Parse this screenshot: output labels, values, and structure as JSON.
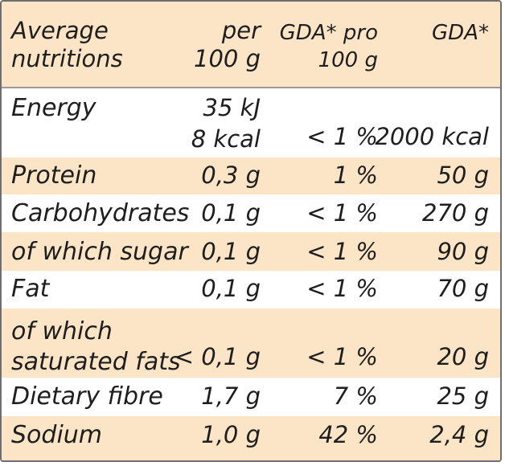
{
  "header": {
    "name_line1": "Average",
    "name_line2": "nutritions",
    "per_line1": "per",
    "per_line2": "100 g",
    "gda_pro_line1": "GDA* pro",
    "gda_pro_line2": "100 g",
    "gda": "GDA*"
  },
  "rows": [
    {
      "name": "Energy",
      "per_line1": "35 kJ",
      "per_line2": "8 kcal",
      "pct": "< 1 %",
      "gda": "2000 kcal"
    },
    {
      "name": "Protein",
      "per": "0,3 g",
      "pct": "1 %",
      "gda": "50 g"
    },
    {
      "name": "Carbohydrates",
      "per": "0,1 g",
      "pct": "< 1 %",
      "gda": "270 g"
    },
    {
      "name": "of which sugar",
      "per": "0,1 g",
      "pct": "< 1 %",
      "gda": "90 g"
    },
    {
      "name": "Fat",
      "per": "0,1 g",
      "pct": "< 1 %",
      "gda": "70 g"
    },
    {
      "name_line1": "of which",
      "name_line2": "saturated fats",
      "per": "< 0,1 g",
      "pct": "< 1 %",
      "gda": "20 g"
    },
    {
      "name": "Dietary fibre",
      "per": "1,7 g",
      "pct": "7 %",
      "gda": "25 g"
    },
    {
      "name": "Sodium",
      "per": "1,0 g",
      "pct": "42 %",
      "gda": "2,4 g"
    }
  ],
  "colors": {
    "shaded": "#fce5c6",
    "border": "#6e6e6e",
    "text": "#1e1e1e"
  }
}
